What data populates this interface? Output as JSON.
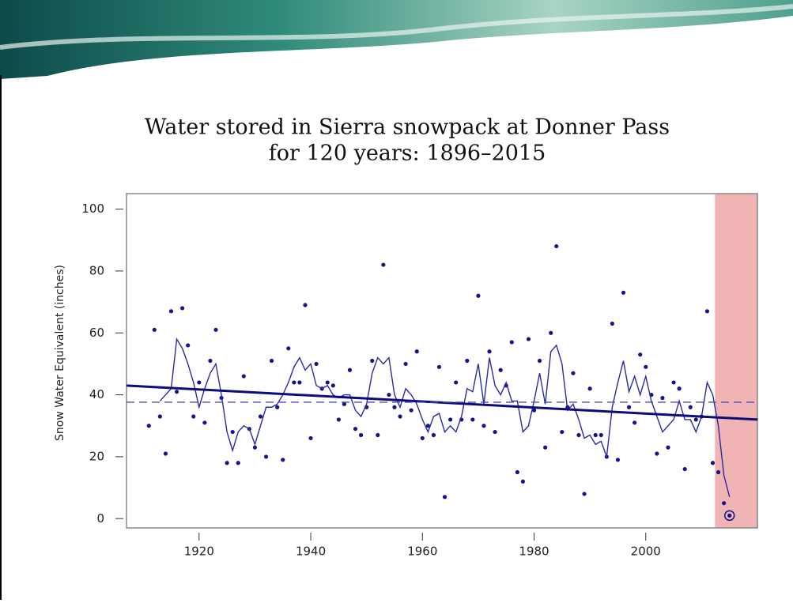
{
  "chart_data": {
    "type": "scatter",
    "title_lines": [
      "Water stored in Sierra snowpack at Donner Pass",
      "for 120 years: 1896–2015"
    ],
    "ylabel": "Snow Water Equivalent (inches)",
    "xlim": [
      1907,
      2020
    ],
    "ylim": [
      -3,
      105
    ],
    "xticks": [
      1920,
      1940,
      1960,
      1980,
      2000
    ],
    "yticks": [
      0,
      20,
      40,
      60,
      80,
      100
    ],
    "highlight_xrange": [
      2012.4,
      2020
    ],
    "highlight_color": "#f0b4b4",
    "circle_last_point": true,
    "series": [
      {
        "style": "points",
        "color": "#14148c",
        "x": [
          1911,
          1912,
          1913,
          1914,
          1915,
          1916,
          1917,
          1918,
          1919,
          1920,
          1921,
          1922,
          1923,
          1924,
          1925,
          1926,
          1927,
          1928,
          1929,
          1930,
          1931,
          1932,
          1933,
          1934,
          1935,
          1936,
          1937,
          1938,
          1939,
          1940,
          1941,
          1942,
          1943,
          1944,
          1945,
          1946,
          1947,
          1948,
          1949,
          1950,
          1951,
          1952,
          1953,
          1954,
          1955,
          1956,
          1957,
          1958,
          1959,
          1960,
          1961,
          1962,
          1963,
          1964,
          1965,
          1966,
          1967,
          1968,
          1969,
          1970,
          1971,
          1972,
          1973,
          1974,
          1975,
          1976,
          1977,
          1978,
          1979,
          1980,
          1981,
          1982,
          1983,
          1984,
          1985,
          1986,
          1987,
          1988,
          1989,
          1990,
          1991,
          1992,
          1993,
          1994,
          1995,
          1996,
          1997,
          1998,
          1999,
          2000,
          2001,
          2002,
          2003,
          2004,
          2005,
          2006,
          2007,
          2008,
          2009,
          2010,
          2011,
          2012,
          2013,
          2014,
          2015
        ],
        "values": [
          30,
          61,
          33,
          21,
          67,
          41,
          68,
          56,
          33,
          44,
          31,
          51,
          61,
          39,
          18,
          28,
          18,
          46,
          29,
          23,
          33,
          20,
          51,
          36,
          19,
          55,
          44,
          44,
          69,
          26,
          50,
          42,
          44,
          43,
          32,
          37,
          48,
          29,
          27,
          36,
          51,
          27,
          82,
          40,
          36,
          33,
          50,
          35,
          54,
          26,
          30,
          27,
          49,
          7,
          32,
          44,
          32,
          51,
          32,
          72,
          30,
          54,
          28,
          48,
          43,
          57,
          15,
          12,
          58,
          35,
          51,
          23,
          60,
          88,
          28,
          36,
          47,
          27,
          8,
          42,
          27,
          27,
          20,
          63,
          19,
          73,
          36,
          31,
          53,
          49,
          40,
          21,
          39,
          23,
          44,
          42,
          16,
          36,
          32,
          33,
          67,
          18,
          15,
          5,
          1
        ]
      },
      {
        "style": "line",
        "color": "#2a2aa6",
        "x": [
          1913,
          1914,
          1915,
          1916,
          1917,
          1918,
          1919,
          1920,
          1921,
          1922,
          1923,
          1924,
          1925,
          1926,
          1927,
          1928,
          1929,
          1930,
          1931,
          1932,
          1933,
          1934,
          1935,
          1936,
          1937,
          1938,
          1939,
          1940,
          1941,
          1942,
          1943,
          1944,
          1945,
          1946,
          1947,
          1948,
          1949,
          1950,
          1951,
          1952,
          1953,
          1954,
          1955,
          1956,
          1957,
          1958,
          1959,
          1960,
          1961,
          1962,
          1963,
          1964,
          1965,
          1966,
          1967,
          1968,
          1969,
          1970,
          1971,
          1972,
          1973,
          1974,
          1975,
          1976,
          1977,
          1978,
          1979,
          1980,
          1981,
          1982,
          1983,
          1984,
          1985,
          1986,
          1987,
          1988,
          1989,
          1990,
          1991,
          1992,
          1993,
          1994,
          1995,
          1996,
          1997,
          1998,
          1999,
          2000,
          2001,
          2002,
          2003,
          2004,
          2005,
          2006,
          2007,
          2008,
          2009,
          2010,
          2011,
          2012,
          2013,
          2014,
          2015
        ],
        "values": [
          38,
          40,
          42,
          58,
          55,
          50,
          44,
          36,
          42,
          47,
          50,
          40,
          28,
          22,
          28,
          30,
          29,
          24,
          30,
          36,
          36,
          37,
          40,
          44,
          49,
          52,
          48,
          50,
          43,
          42,
          43,
          40,
          39,
          40,
          40,
          35,
          33,
          37,
          47,
          52,
          50,
          52,
          40,
          36,
          42,
          40,
          37,
          32,
          28,
          33,
          34,
          28,
          30,
          28,
          33,
          42,
          41,
          50,
          37,
          52,
          43,
          40,
          44,
          38,
          38,
          28,
          30,
          38,
          47,
          37,
          54,
          56,
          50,
          35,
          37,
          32,
          26,
          27,
          24,
          25,
          20,
          36,
          44,
          51,
          41,
          46,
          40,
          46,
          38,
          33,
          28,
          30,
          32,
          38,
          32,
          32,
          28,
          33,
          44,
          40,
          30,
          14,
          7
        ]
      },
      {
        "style": "trend",
        "color": "#0c0c7e",
        "x": [
          1907,
          2020
        ],
        "values": [
          43,
          32
        ]
      },
      {
        "style": "dashed",
        "color": "#4a4ab0",
        "x": [
          1907,
          2020
        ],
        "values": [
          37.6,
          37.6
        ]
      }
    ]
  }
}
